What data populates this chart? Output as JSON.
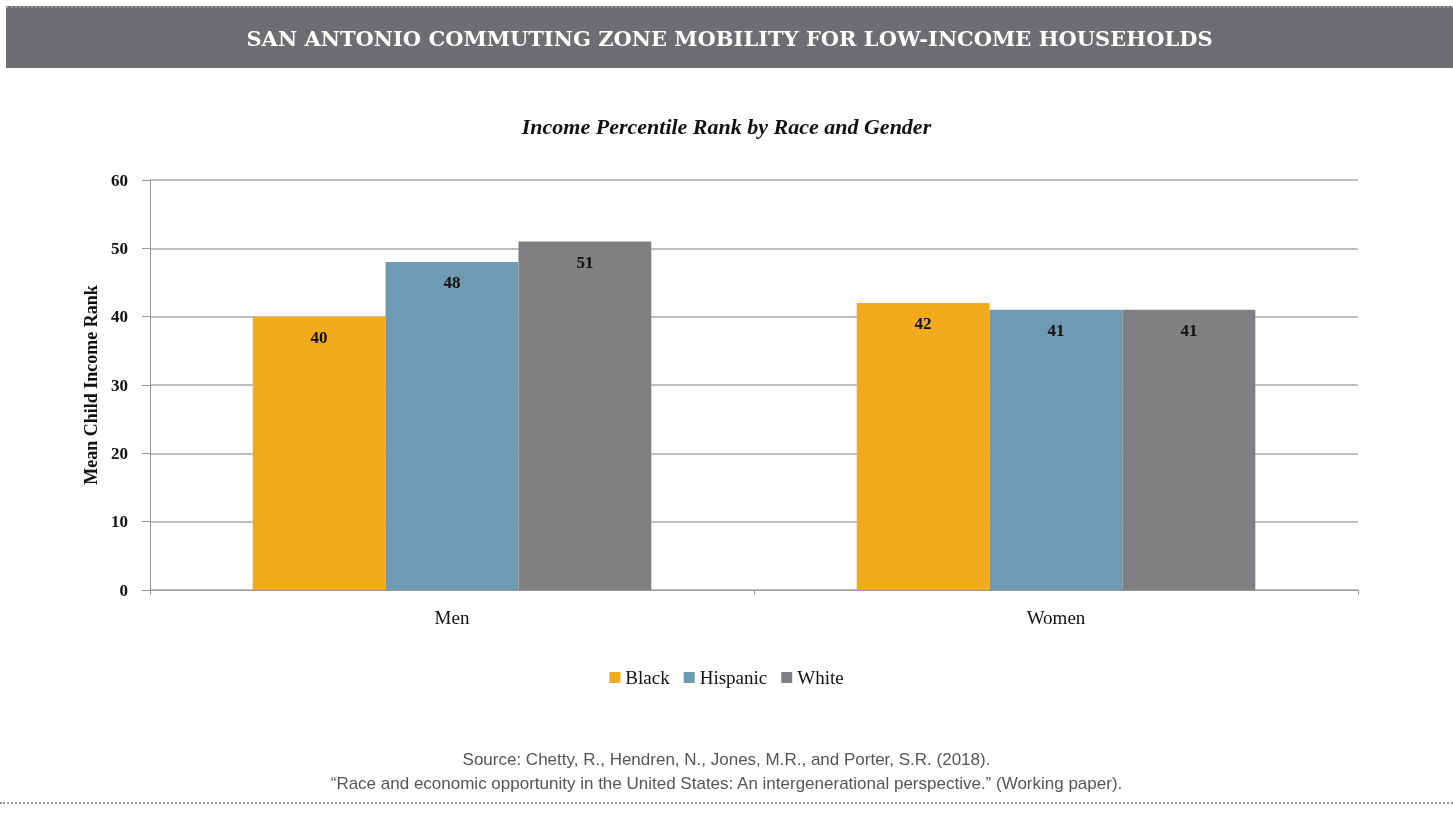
{
  "chart_data": {
    "type": "bar",
    "title": "SAN ANTONIO COMMUTING ZONE MOBILITY FOR LOW-INCOME HOUSEHOLDS",
    "subtitle": "Income Percentile Rank by Race and Gender",
    "ylabel": "Mean Child Income Rank",
    "categories": [
      "Men",
      "Women"
    ],
    "series": [
      {
        "name": "Black",
        "color": "#f2ab1d",
        "values": [
          40,
          42
        ]
      },
      {
        "name": "Hispanic",
        "color": "#6f9ab3",
        "values": [
          48,
          41
        ]
      },
      {
        "name": "White",
        "color": "#808083",
        "values": [
          51,
          41
        ]
      }
    ],
    "ylim": [
      0,
      60
    ],
    "yticks": [
      0,
      10,
      20,
      30,
      40,
      50,
      60
    ],
    "grid": "y",
    "legend": "bottom",
    "data_labels": true,
    "annotations": [
      "Source: Chetty, R., Hendren, N., Jones, M.R., and Porter, S.R. (2018).",
      "“Race and economic opportunity in the United States: An intergenerational perspective.” (Working paper)."
    ]
  }
}
